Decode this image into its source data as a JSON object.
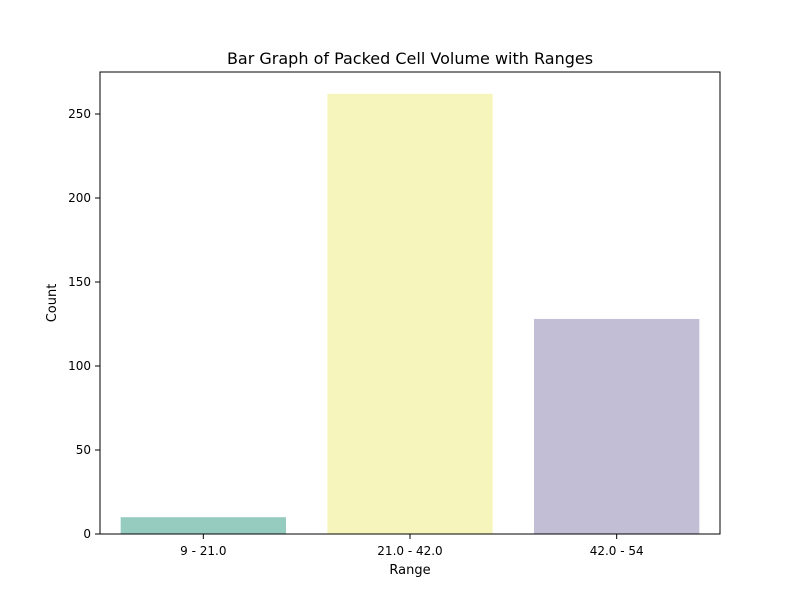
{
  "chart_data": {
    "type": "bar",
    "title": "Bar Graph of Packed Cell Volume with Ranges",
    "xlabel": "Range",
    "ylabel": "Count",
    "categories": [
      "9 - 21.0",
      "21.0 - 42.0",
      "42.0 - 54"
    ],
    "values": [
      10,
      262,
      128
    ],
    "colors": [
      "#96cbbf",
      "#f6f6bc",
      "#c1bed6"
    ],
    "ylim": [
      0,
      275
    ],
    "yticks": [
      0,
      50,
      100,
      150,
      200,
      250
    ],
    "grid": false,
    "legend": "none"
  }
}
